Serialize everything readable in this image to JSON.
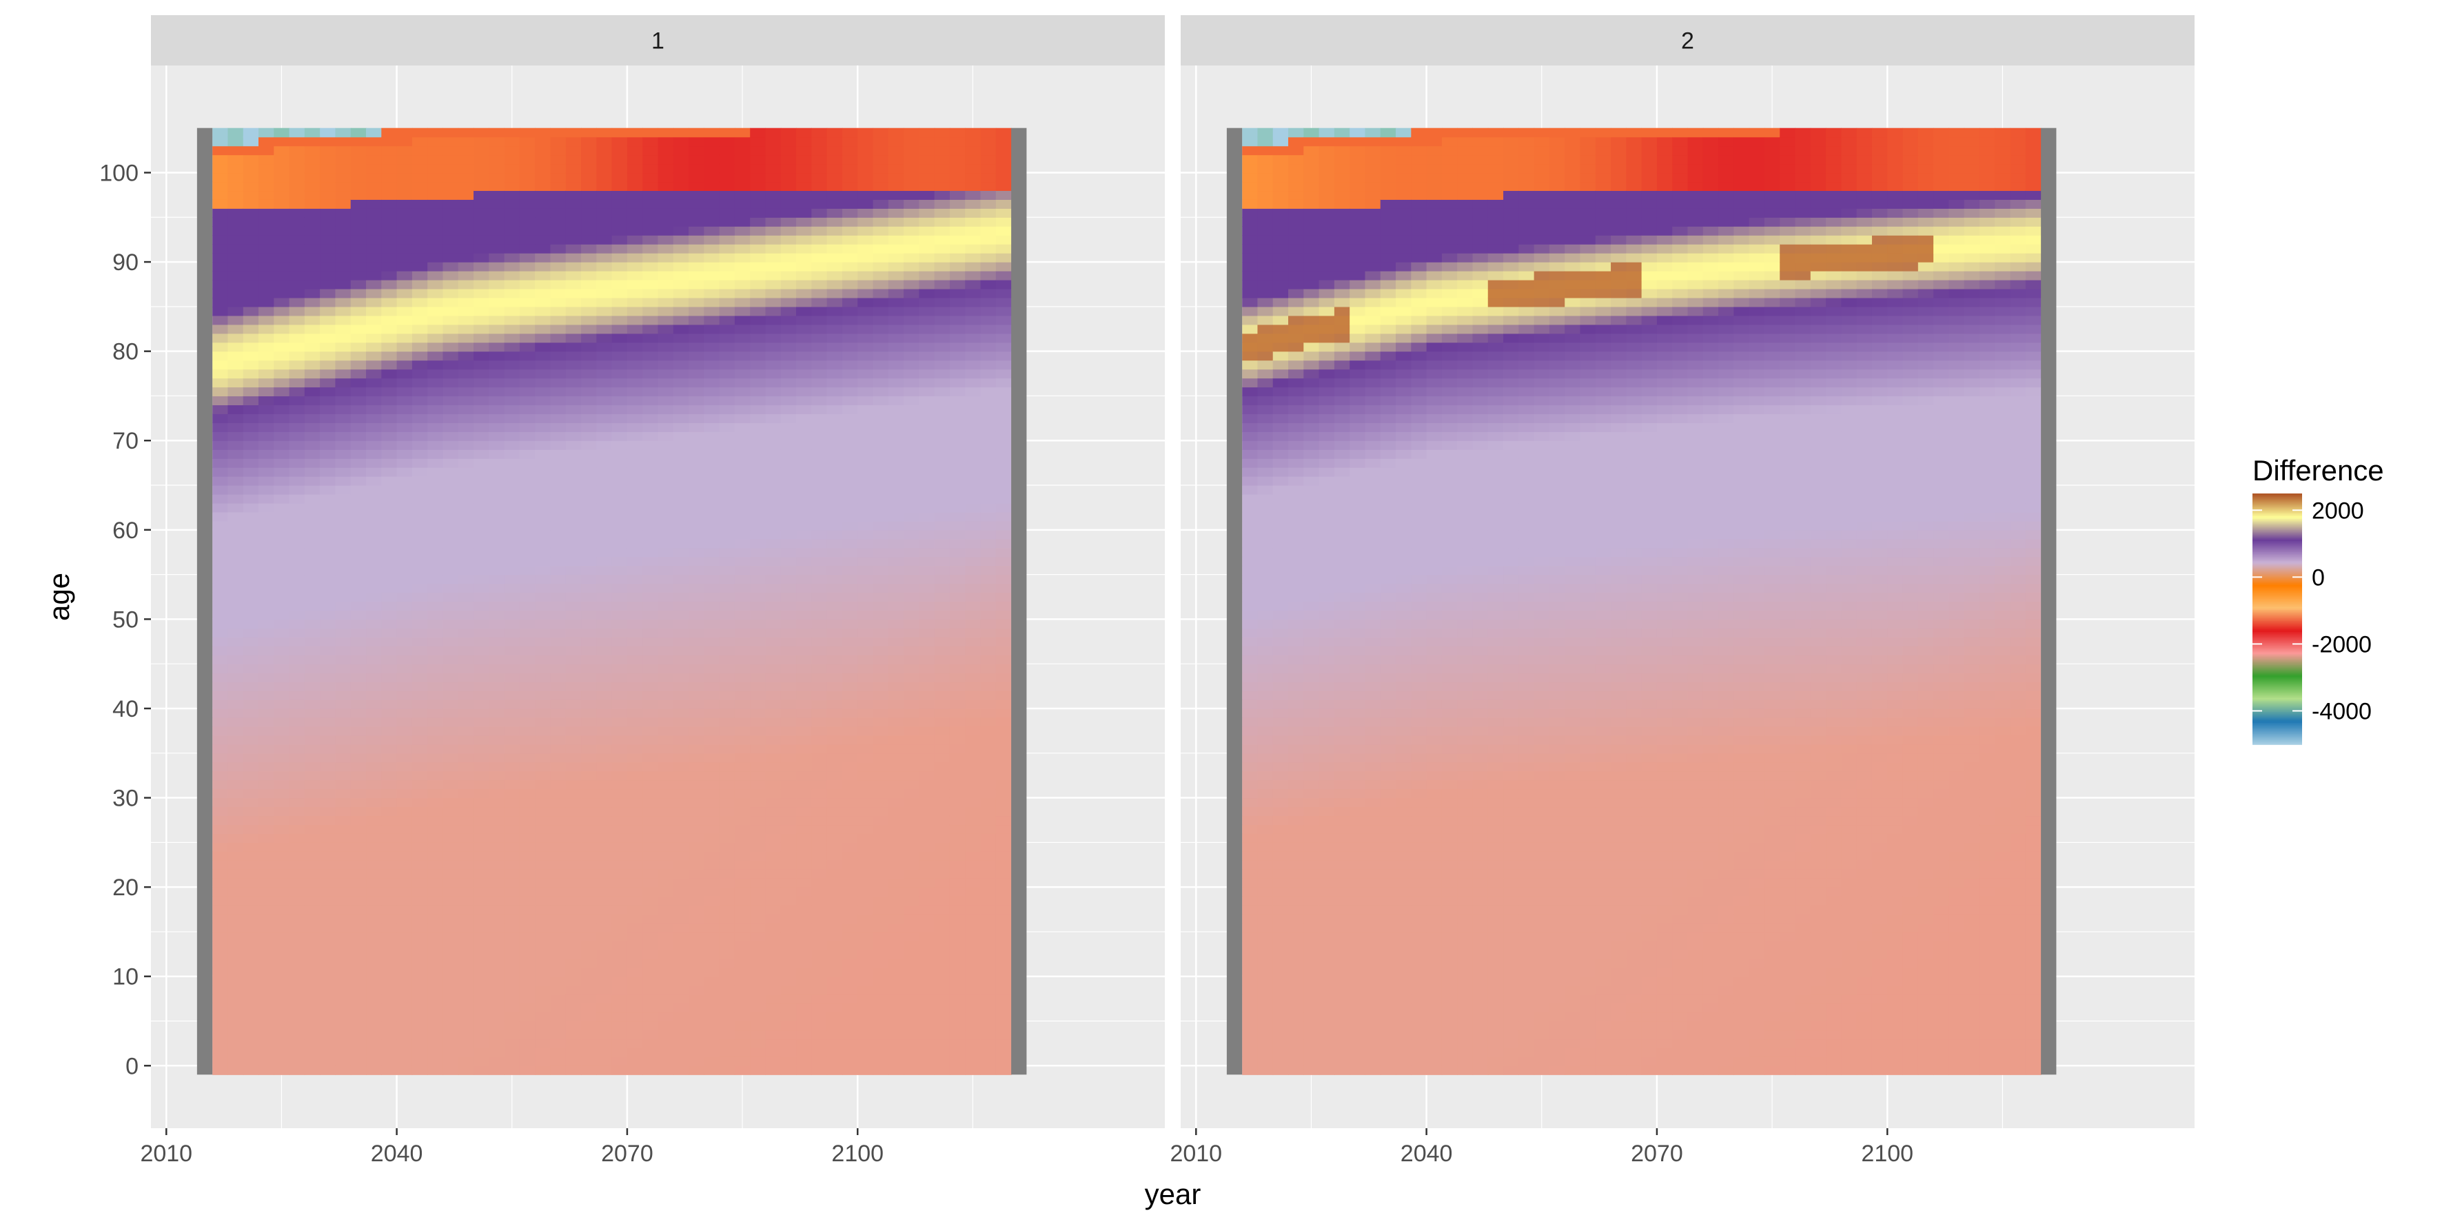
{
  "chart_data": {
    "type": "heatmap",
    "facets": [
      {
        "label": "1",
        "hot_band": {
          "center_age": [
            [
              2015,
              78
            ],
            [
              2045,
              84
            ],
            [
              2080,
              88
            ],
            [
              2120,
              93
            ]
          ],
          "width": 5.5
        },
        "high_ages_top": [
          [
            2015,
            98
          ],
          [
            2050,
            100
          ],
          [
            2120,
            101
          ]
        ]
      },
      {
        "label": "2",
        "hot_band": {
          "center_age": [
            [
              2015,
              80
            ],
            [
              2040,
              85
            ],
            [
              2080,
              89
            ],
            [
              2120,
              92
            ]
          ],
          "width": 5.0
        },
        "high_ages_top": [
          [
            2015,
            98
          ],
          [
            2050,
            100
          ],
          [
            2120,
            101
          ]
        ]
      }
    ],
    "x": {
      "label": "year",
      "ticks": [
        2010,
        2040,
        2070,
        2100
      ],
      "lim": [
        2008,
        2140
      ]
    },
    "y": {
      "label": "age",
      "ticks": [
        0,
        10,
        20,
        30,
        40,
        50,
        60,
        70,
        80,
        90,
        100
      ],
      "lim": [
        -7,
        112
      ]
    },
    "data_extent": {
      "year": [
        2014,
        2122
      ],
      "age": [
        -1,
        105
      ]
    },
    "legend": {
      "title": "Difference",
      "labels": [
        "2000",
        "0",
        "-2000",
        "-4000"
      ],
      "values": [
        2000,
        0,
        -2000,
        -4000
      ],
      "range": [
        -5000,
        2500
      ],
      "placement": "right"
    },
    "colors": {
      "scale": [
        "#A6CEE3",
        "#1F78B4",
        "#B2DF8A",
        "#33A02C",
        "#FB9A99",
        "#E31A1C",
        "#FDBF6F",
        "#FF7F00",
        "#CAB2D6",
        "#6A3D9A",
        "#FFFF99",
        "#B15928"
      ],
      "panel_bg": "#EBEBEB",
      "strip_bg": "#D9D9D9",
      "grid": "#FFFFFF",
      "edge_bars": "#7F7F7F",
      "base_fill": "#E9A08F"
    },
    "grid": true
  }
}
